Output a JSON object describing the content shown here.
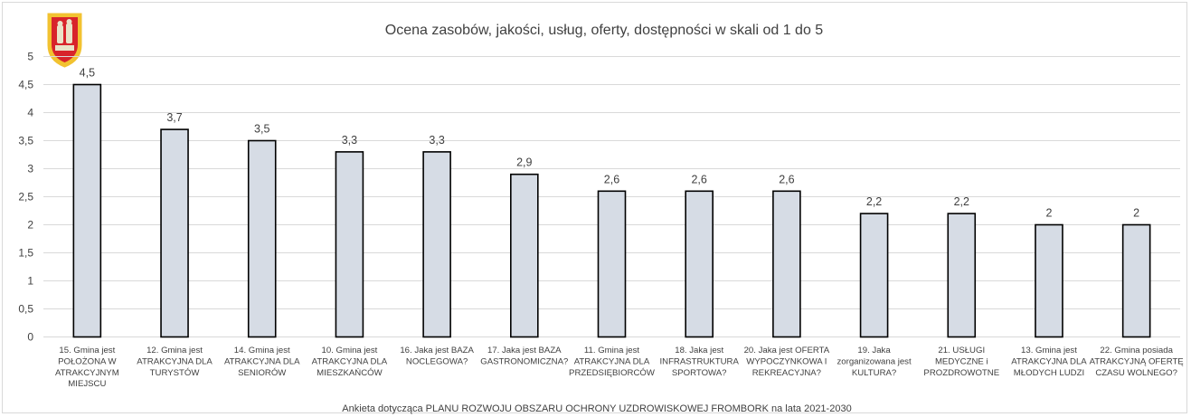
{
  "chart_data": {
    "type": "bar",
    "title": "Ocena zasobów, jakości, usług, oferty, dostępności w skali od 1 do 5",
    "footer": "Ankieta dotycząca PLANU ROZWOJU OBSZARU OCHRONY UZDROWISKOWEJ FROMBORK na lata 2021-2030",
    "ylim": [
      0,
      5
    ],
    "y_ticks": [
      "0",
      "0,5",
      "1",
      "1,5",
      "2",
      "2,5",
      "3",
      "3,5",
      "4",
      "4,5",
      "5"
    ],
    "categories": [
      [
        "15. Gmina jest",
        "POŁOŻONA W",
        "ATRAKCYJNYM",
        "MIEJSCU"
      ],
      [
        "12. Gmina jest",
        "ATRAKCYJNA DLA",
        "TURYSTÓW"
      ],
      [
        "14. Gmina jest",
        "ATRAKCYJNA DLA",
        "SENIORÓW"
      ],
      [
        "10. Gmina jest",
        "ATRAKCYJNA DLA",
        "MIESZKAŃCÓW"
      ],
      [
        "16. Jaka jest BAZA",
        "NOCLEGOWA?"
      ],
      [
        "17. Jaka jest BAZA",
        "GASTRONOMICZNA?"
      ],
      [
        "11. Gmina jest",
        "ATRAKCYJNA DLA",
        "PRZEDSIĘBIORCÓW"
      ],
      [
        "18. Jaka jest",
        "INFRASTRUKTURA",
        "SPORTOWA?"
      ],
      [
        "20. Jaka jest OFERTA",
        "WYPOCZYNKOWA I",
        "REKREACYJNA?"
      ],
      [
        "19. Jaka",
        "zorganizowana jest",
        "KULTURA?"
      ],
      [
        "21. USŁUGI",
        "MEDYCZNE i",
        "PROZDROWOTNE"
      ],
      [
        "13. Gmina jest",
        "ATRAKCYJNA DLA",
        "MŁODYCH LUDZI"
      ],
      [
        "22. Gmina posiada",
        "ATRAKCYJNĄ OFERTĘ",
        "CZASU WOLNEGO?"
      ]
    ],
    "values": [
      4.5,
      3.7,
      3.5,
      3.3,
      3.3,
      2.9,
      2.6,
      2.6,
      2.6,
      2.2,
      2.2,
      2,
      2
    ],
    "data_labels": [
      "4,5",
      "3,7",
      "3,5",
      "3,3",
      "3,3",
      "2,9",
      "2,6",
      "2,6",
      "2,6",
      "2,2",
      "2,2",
      "2",
      "2"
    ],
    "grid": true,
    "legend": "none",
    "colors": {
      "bar_fill": "#d6dce5",
      "bar_stroke": "#000000",
      "grid": "#d9d9d9",
      "text": "#404040"
    }
  },
  "logo": {
    "icon": "coat-of-arms-icon",
    "colors": {
      "field": "#d8232a",
      "border": "#f2c230",
      "figure": "#e9e3c8"
    }
  }
}
